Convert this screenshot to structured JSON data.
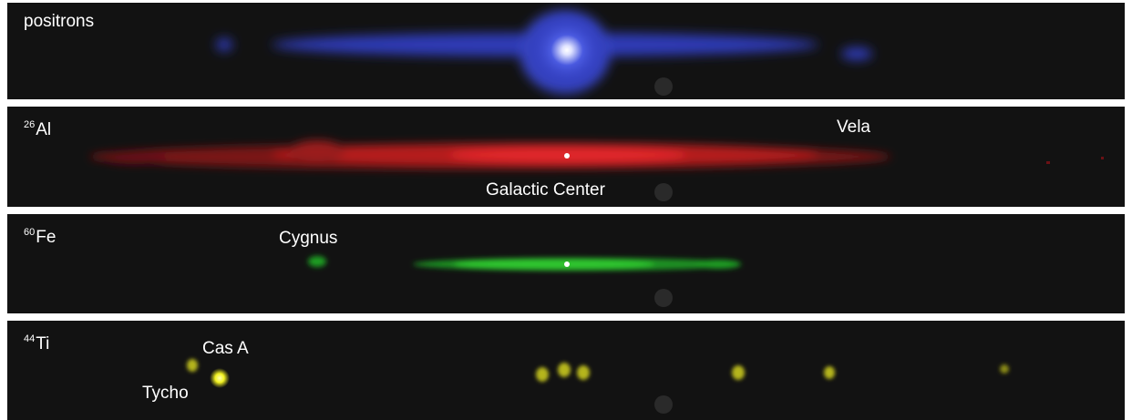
{
  "panels": [
    {
      "id": "positrons",
      "label": "positrons",
      "color": "#3340c8"
    },
    {
      "id": "al26",
      "label_sup": "26",
      "label_main": "Al",
      "color": "#d11a1a",
      "annotations": [
        "Vela",
        "Galactic Center"
      ]
    },
    {
      "id": "fe60",
      "label_sup": "60",
      "label_main": "Fe",
      "color": "#28b82a",
      "annotations": [
        "Cygnus"
      ]
    },
    {
      "id": "ti44",
      "label_sup": "44",
      "label_main": "Ti",
      "color": "#c8c820",
      "annotations": [
        "Cas A",
        "Tycho"
      ]
    }
  ]
}
